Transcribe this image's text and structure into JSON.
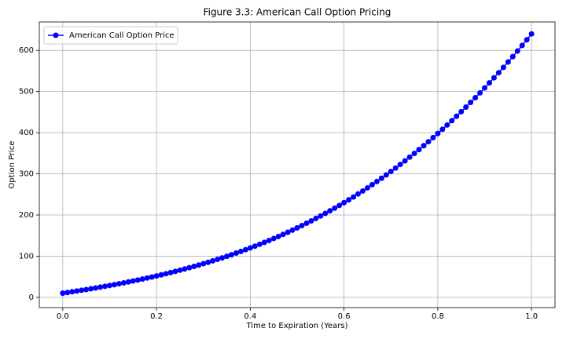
{
  "chart_data": {
    "type": "line",
    "title": "Figure 3.3: American Call Option Pricing",
    "x_label": "Time to Expiration (Years)",
    "y_label": "Option Price",
    "x": [
      0,
      0.01,
      0.02,
      0.03,
      0.04,
      0.05,
      0.06,
      0.07,
      0.08,
      0.09,
      0.1,
      0.11,
      0.12,
      0.13,
      0.14,
      0.15,
      0.16,
      0.17,
      0.18,
      0.19,
      0.2,
      0.21,
      0.22,
      0.23,
      0.24,
      0.25,
      0.26,
      0.27,
      0.28,
      0.29,
      0.3,
      0.31,
      0.32,
      0.33,
      0.34,
      0.35,
      0.36,
      0.37,
      0.38,
      0.39,
      0.4,
      0.41,
      0.42,
      0.43,
      0.44,
      0.45,
      0.46,
      0.47,
      0.48,
      0.49,
      0.5,
      0.51,
      0.52,
      0.53,
      0.54,
      0.55,
      0.56,
      0.57,
      0.58,
      0.59,
      0.6,
      0.61,
      0.62,
      0.63,
      0.64,
      0.65,
      0.66,
      0.67,
      0.68,
      0.69,
      0.7,
      0.71,
      0.72,
      0.73,
      0.74,
      0.75,
      0.76,
      0.77,
      0.78,
      0.79,
      0.8,
      0.81,
      0.82,
      0.83,
      0.84,
      0.85,
      0.86,
      0.87,
      0.88,
      0.89,
      0.9,
      0.91,
      0.92,
      0.93,
      0.94,
      0.95,
      0.96,
      0.97,
      0.98,
      0.99,
      1
    ],
    "series": [
      {
        "name": "American Call Option Price",
        "color": "#0000ff",
        "values": [
          10,
          11.7,
          13.5,
          15.3,
          17.1,
          18.9,
          20.8,
          22.7,
          24.7,
          26.7,
          28.7,
          30.8,
          33.0,
          35.1,
          37.4,
          39.7,
          42.0,
          44.4,
          46.9,
          49.4,
          52.0,
          54.6,
          57.3,
          60.1,
          63.0,
          65.9,
          68.9,
          72.0,
          75.1,
          78.4,
          81.7,
          85.1,
          88.6,
          92.2,
          95.9,
          99.7,
          103.5,
          107.5,
          111.5,
          115.7,
          120.0,
          124.3,
          128.8,
          133.4,
          138.1,
          142.9,
          147.8,
          152.9,
          158.0,
          163.3,
          168.7,
          174.3,
          179.9,
          185.7,
          191.6,
          197.7,
          203.9,
          210.2,
          216.6,
          223.2,
          230.0,
          236.9,
          243.9,
          251.1,
          258.4,
          265.9,
          273.6,
          281.4,
          289.3,
          297.5,
          305.7,
          314.2,
          322.8,
          331.6,
          340.6,
          349.7,
          359.0,
          368.5,
          378.1,
          388.0,
          398.0,
          408.2,
          418.6,
          429.2,
          440.0,
          450.9,
          462.1,
          473.5,
          485.0,
          496.8,
          508.8,
          520.9,
          533.3,
          545.9,
          558.7,
          571.7,
          584.9,
          598.4,
          612.0,
          625.9,
          640
        ]
      }
    ],
    "xlim": [
      -0.05,
      1.05
    ],
    "ylim": [
      -25,
      669
    ],
    "xticks": [
      {
        "value": 0,
        "label": "0.0"
      },
      0.2,
      0.4,
      0.6,
      0.8,
      {
        "value": 1,
        "label": "1.0"
      }
    ],
    "yticks": [
      0,
      100,
      200,
      300,
      400,
      500,
      600
    ],
    "grid": true,
    "legend": "upper left"
  }
}
